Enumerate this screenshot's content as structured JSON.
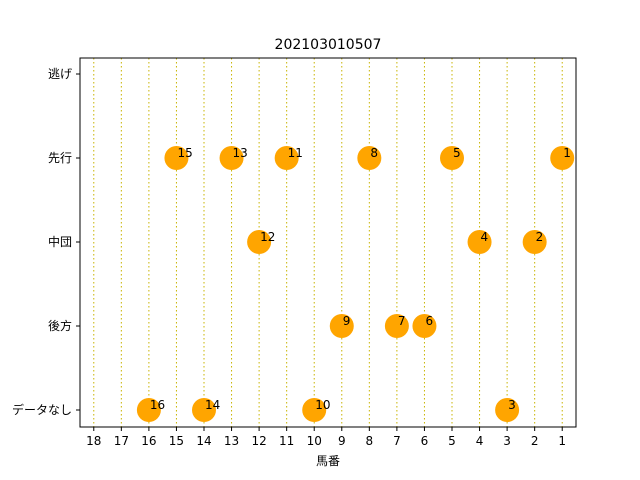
{
  "chart_data": {
    "type": "scatter",
    "title": "202103010507",
    "xlabel": "馬番",
    "ylabel": "",
    "x_ticks": [
      18,
      17,
      16,
      15,
      14,
      13,
      12,
      11,
      10,
      9,
      8,
      7,
      6,
      5,
      4,
      3,
      2,
      1
    ],
    "x_inverted": true,
    "xlim": [
      18.5,
      0.5
    ],
    "y_categories": [
      "逃げ",
      "先行",
      "中団",
      "後方",
      "データなし"
    ],
    "grid": "vertical dotted",
    "marker_color": "#ffa500",
    "grid_color": "#c8b400",
    "points": [
      {
        "x": 15,
        "y": "先行",
        "label": "15"
      },
      {
        "x": 13,
        "y": "先行",
        "label": "13"
      },
      {
        "x": 11,
        "y": "先行",
        "label": "11"
      },
      {
        "x": 8,
        "y": "先行",
        "label": "8"
      },
      {
        "x": 5,
        "y": "先行",
        "label": "5"
      },
      {
        "x": 1,
        "y": "先行",
        "label": "1"
      },
      {
        "x": 12,
        "y": "中団",
        "label": "12"
      },
      {
        "x": 4,
        "y": "中団",
        "label": "4"
      },
      {
        "x": 2,
        "y": "中団",
        "label": "2"
      },
      {
        "x": 9,
        "y": "後方",
        "label": "9"
      },
      {
        "x": 7,
        "y": "後方",
        "label": "7"
      },
      {
        "x": 6,
        "y": "後方",
        "label": "6"
      },
      {
        "x": 16,
        "y": "データなし",
        "label": "16"
      },
      {
        "x": 14,
        "y": "データなし",
        "label": "14"
      },
      {
        "x": 10,
        "y": "データなし",
        "label": "10"
      },
      {
        "x": 3,
        "y": "データなし",
        "label": "3"
      }
    ]
  }
}
